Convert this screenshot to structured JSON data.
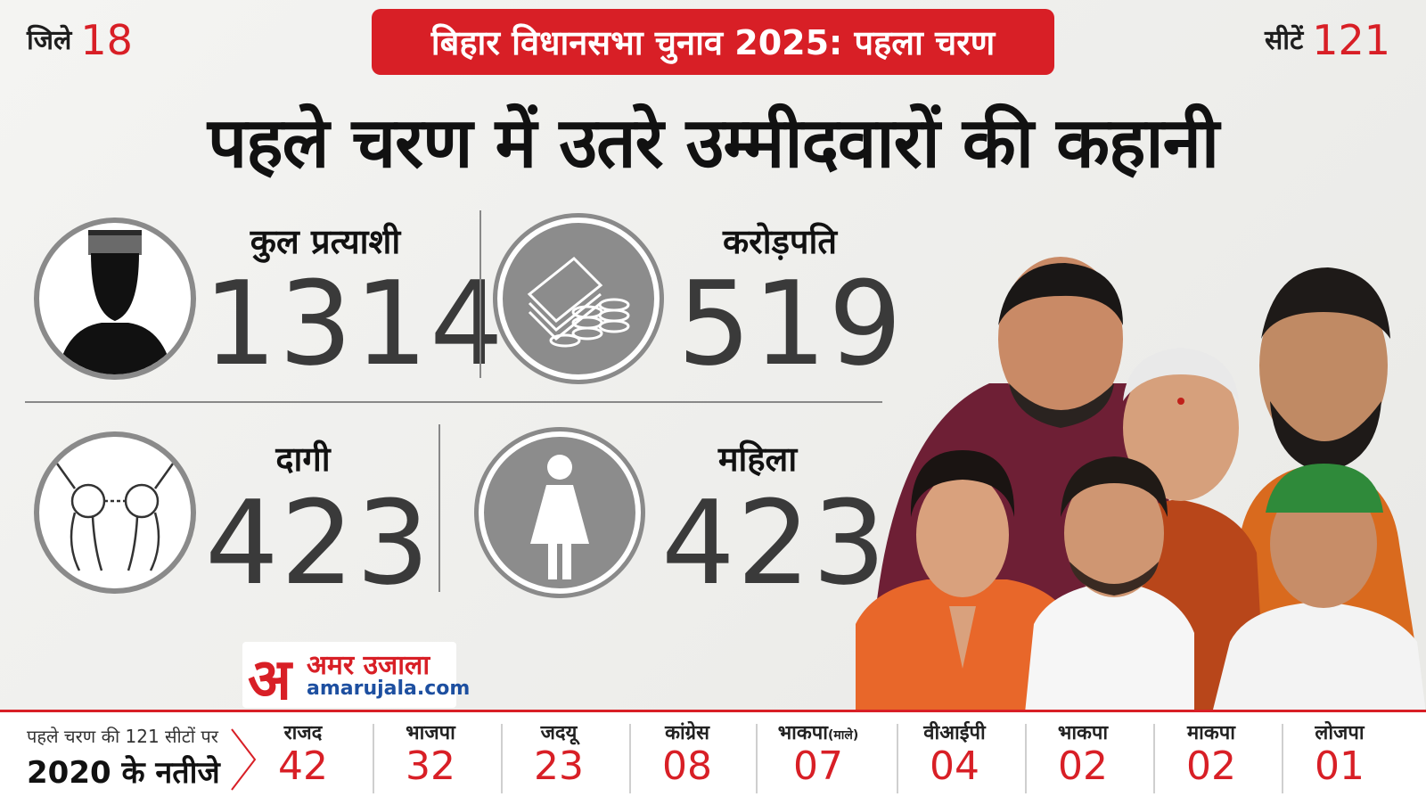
{
  "header": {
    "districts_label": "जिले",
    "districts_value": "18",
    "banner": "बिहार विधानसभा चुनाव 2025: पहला चरण",
    "seats_label": "सीटें",
    "seats_value": "121"
  },
  "headline": "पहले चरण में उतरे उम्मीदवारों की कहानी",
  "stats": [
    {
      "label": "कुल प्रत्याशी",
      "value": "1314",
      "icon": "person-icon"
    },
    {
      "label": "करोड़पति",
      "value": "519",
      "icon": "money-icon"
    },
    {
      "label": "दागी",
      "value": "423",
      "icon": "handcuffs-icon"
    },
    {
      "label": "महिला",
      "value": "423",
      "icon": "woman-icon"
    }
  ],
  "logo": {
    "mark": "अ",
    "name": "अमर उजाला",
    "site": "amarujala.com"
  },
  "results": {
    "label_line1": "पहले चरण की 121 सीटों पर",
    "label_line2": "2020 के नतीजे",
    "parties": [
      {
        "name": "राजद",
        "value": "42"
      },
      {
        "name": "भाजपा",
        "value": "32"
      },
      {
        "name": "जदयू",
        "value": "23"
      },
      {
        "name": "कांग्रेस",
        "value": "08"
      },
      {
        "name": "भाकपा",
        "suffix": "(माले)",
        "value": "07"
      },
      {
        "name": "वीआईपी",
        "value": "04"
      },
      {
        "name": "भाकपा",
        "value": "02"
      },
      {
        "name": "माकपा",
        "value": "02"
      },
      {
        "name": "लोजपा",
        "value": "01"
      }
    ]
  },
  "colors": {
    "accent": "#d81f26",
    "number": "#3a3a3a"
  }
}
